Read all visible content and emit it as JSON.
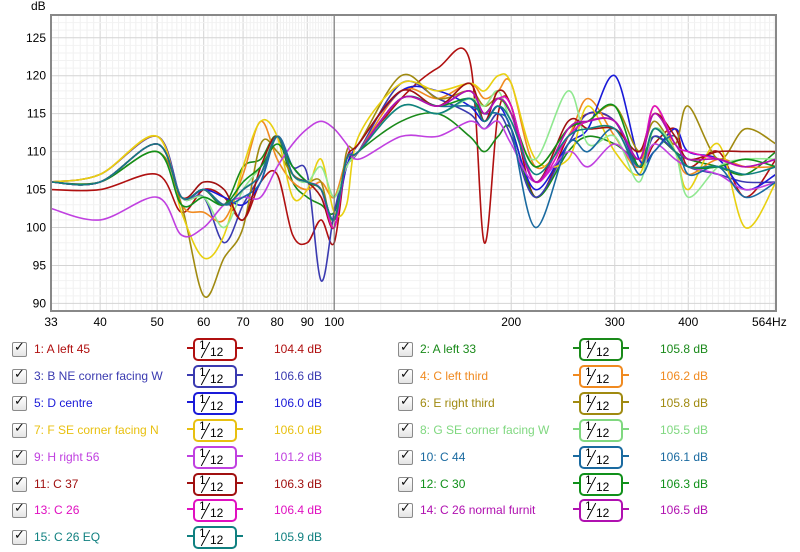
{
  "chart_data": {
    "type": "line",
    "title": "",
    "ylabel": "dB",
    "xlabel": "",
    "xscale": "log",
    "xlim": [
      33,
      564
    ],
    "ylim": [
      89,
      128
    ],
    "x_ticks": [
      33,
      40,
      50,
      60,
      70,
      80,
      90,
      100,
      200,
      300,
      400,
      564
    ],
    "x_tick_labels": [
      "33",
      "40",
      "50",
      "60",
      "70",
      "80",
      "90",
      "100",
      "200",
      "300",
      "400",
      "564Hz"
    ],
    "y_ticks": [
      90,
      95,
      100,
      105,
      110,
      115,
      120,
      125
    ],
    "grid": true,
    "cursor_x": 100,
    "series": [
      {
        "name": "1: A left 45",
        "color": "#b01010",
        "x": [
          33,
          40,
          50,
          55,
          60,
          65,
          70,
          75,
          80,
          85,
          90,
          95,
          100,
          105,
          110,
          130,
          150,
          170,
          180,
          190,
          200,
          220,
          250,
          270,
          300,
          330,
          350,
          380,
          400,
          450,
          500,
          564
        ],
        "y": [
          105,
          105,
          107,
          102,
          105,
          104,
          101,
          106,
          107,
          99,
          98,
          101,
          98,
          109,
          110,
          117,
          121,
          122,
          98,
          115,
          116,
          104,
          112,
          115,
          114,
          108,
          111,
          113,
          108,
          110,
          104,
          109
        ]
      },
      {
        "name": "2: A left 33",
        "color": "#1a8a1a",
        "x": [
          33,
          40,
          50,
          55,
          60,
          65,
          70,
          75,
          80,
          85,
          90,
          95,
          100,
          105,
          110,
          130,
          150,
          170,
          180,
          190,
          200,
          220,
          250,
          270,
          300,
          330,
          350,
          380,
          400,
          450,
          500,
          564
        ],
        "y": [
          106,
          106,
          111,
          104,
          105,
          103,
          108,
          109,
          112,
          106,
          104,
          103,
          102,
          108,
          110,
          114,
          115,
          112,
          110,
          112,
          113,
          104,
          110,
          112,
          111,
          109,
          112,
          110,
          109,
          108,
          107,
          110
        ]
      },
      {
        "name": "3: B NE corner facing W",
        "color": "#3a3ab0",
        "x": [
          33,
          40,
          50,
          55,
          60,
          65,
          70,
          75,
          80,
          85,
          90,
          95,
          100,
          105,
          110,
          130,
          150,
          170,
          180,
          190,
          200,
          220,
          250,
          270,
          300,
          330,
          350,
          380,
          400,
          450,
          500,
          564
        ],
        "y": [
          106,
          107,
          112,
          104,
          104,
          98,
          103,
          107,
          112,
          108,
          107,
          93,
          102,
          108,
          110,
          119,
          117,
          115,
          113,
          115,
          112,
          104,
          111,
          115,
          114,
          108,
          112,
          110,
          108,
          107,
          106,
          106
        ]
      },
      {
        "name": "4: C left third",
        "color": "#f08a20",
        "x": [
          33,
          40,
          50,
          55,
          60,
          65,
          70,
          75,
          80,
          85,
          90,
          95,
          100,
          105,
          110,
          130,
          150,
          170,
          180,
          190,
          200,
          220,
          250,
          270,
          300,
          330,
          350,
          380,
          400,
          450,
          500,
          564
        ],
        "y": [
          106,
          107,
          112,
          103,
          102,
          101,
          107,
          114,
          109,
          106,
          105,
          106,
          104,
          109,
          110,
          118,
          117,
          119,
          117,
          118,
          119,
          108,
          112,
          117,
          112,
          108,
          116,
          110,
          107,
          109,
          108,
          108
        ]
      },
      {
        "name": "5: D centre",
        "color": "#1a1ad8",
        "x": [
          33,
          40,
          50,
          55,
          60,
          65,
          70,
          75,
          80,
          85,
          90,
          95,
          100,
          105,
          110,
          130,
          150,
          170,
          180,
          190,
          200,
          220,
          250,
          270,
          300,
          330,
          350,
          380,
          400,
          450,
          500,
          564
        ],
        "y": [
          106,
          106,
          111,
          104,
          105,
          104,
          103,
          106,
          112,
          107,
          106,
          105,
          101,
          108,
          111,
          118,
          118,
          116,
          114,
          116,
          113,
          105,
          111,
          113,
          120,
          109,
          110,
          113,
          110,
          109,
          105,
          107
        ]
      },
      {
        "name": "6: E right third",
        "color": "#a08a10",
        "x": [
          33,
          40,
          50,
          55,
          60,
          65,
          70,
          75,
          80,
          85,
          90,
          95,
          100,
          105,
          110,
          130,
          150,
          170,
          180,
          190,
          200,
          220,
          250,
          270,
          300,
          330,
          350,
          380,
          400,
          450,
          500,
          564
        ],
        "y": [
          106,
          106,
          110,
          103,
          91,
          96,
          100,
          111,
          110,
          107,
          106,
          106,
          100,
          110,
          111,
          120,
          117,
          118,
          116,
          117,
          115,
          108,
          113,
          114,
          116,
          110,
          114,
          111,
          116,
          109,
          113,
          111
        ]
      },
      {
        "name": "7: F SE corner facing N",
        "color": "#e8d010",
        "x": [
          33,
          40,
          50,
          55,
          60,
          65,
          70,
          75,
          80,
          85,
          90,
          95,
          100,
          105,
          110,
          130,
          150,
          170,
          180,
          190,
          200,
          220,
          250,
          270,
          300,
          330,
          350,
          380,
          400,
          450,
          500,
          564
        ],
        "y": [
          106,
          107,
          112,
          102,
          96,
          99,
          108,
          114,
          112,
          104,
          105,
          109,
          102,
          103,
          112,
          119,
          118,
          119,
          118,
          120,
          119,
          109,
          109,
          116,
          110,
          107,
          113,
          110,
          105,
          111,
          100,
          106
        ]
      },
      {
        "name": "8: G SE corner facing W",
        "color": "#90e890",
        "x": [
          33,
          40,
          50,
          55,
          60,
          65,
          70,
          75,
          80,
          85,
          90,
          95,
          100,
          105,
          110,
          130,
          150,
          170,
          180,
          190,
          200,
          220,
          250,
          270,
          300,
          330,
          350,
          380,
          400,
          450,
          500,
          564
        ],
        "y": [
          106,
          106,
          111,
          104,
          104,
          100,
          105,
          108,
          112,
          107,
          106,
          108,
          104,
          108,
          110,
          116,
          115,
          117,
          116,
          118,
          114,
          109,
          118,
          111,
          112,
          106,
          113,
          110,
          104,
          108,
          109,
          109
        ]
      },
      {
        "name": "9: H right 56",
        "color": "#c040e0",
        "x": [
          33,
          40,
          50,
          55,
          60,
          65,
          70,
          75,
          80,
          85,
          90,
          95,
          100,
          105,
          110,
          130,
          150,
          170,
          180,
          190,
          200,
          220,
          250,
          270,
          300,
          330,
          350,
          380,
          400,
          450,
          500,
          564
        ],
        "y": [
          102.5,
          101,
          104,
          99,
          100,
          103,
          104,
          104,
          108,
          111,
          113,
          114,
          113,
          111,
          109,
          112,
          112,
          114,
          113,
          114,
          111,
          106,
          110,
          108,
          111,
          108,
          111,
          109,
          108,
          107,
          105,
          106
        ]
      },
      {
        "name": "10: C 44",
        "color": "#1a6aa0",
        "x": [
          33,
          40,
          50,
          55,
          60,
          65,
          70,
          75,
          80,
          85,
          90,
          95,
          100,
          105,
          110,
          130,
          150,
          170,
          180,
          190,
          200,
          220,
          250,
          270,
          300,
          330,
          350,
          380,
          400,
          450,
          500,
          564
        ],
        "y": [
          106,
          106,
          111,
          104,
          105,
          103,
          104,
          106,
          112,
          108,
          106,
          105,
          101,
          109,
          110,
          117,
          116,
          116,
          115,
          115,
          113,
          100,
          111,
          110,
          113,
          107,
          110,
          112,
          107,
          108,
          104,
          106
        ]
      },
      {
        "name": "11: C 37",
        "color": "#a01010",
        "x": [
          33,
          40,
          50,
          55,
          60,
          65,
          70,
          75,
          80,
          85,
          90,
          95,
          100,
          105,
          110,
          130,
          150,
          170,
          180,
          190,
          200,
          220,
          250,
          270,
          300,
          330,
          350,
          380,
          400,
          450,
          500,
          564
        ],
        "y": [
          106,
          106,
          111,
          104,
          106,
          105,
          101,
          108,
          112,
          107,
          106,
          104,
          100,
          109,
          111,
          118,
          116,
          119,
          114,
          118,
          116,
          106,
          114,
          113,
          113,
          110,
          115,
          112,
          109,
          110,
          110,
          110
        ]
      },
      {
        "name": "12: C 30",
        "color": "#10901a",
        "x": [
          33,
          40,
          50,
          55,
          60,
          65,
          70,
          75,
          80,
          85,
          90,
          95,
          100,
          105,
          110,
          130,
          150,
          170,
          180,
          190,
          200,
          220,
          250,
          270,
          300,
          330,
          350,
          380,
          400,
          450,
          500,
          564
        ],
        "y": [
          106,
          106,
          110,
          103,
          104,
          103,
          106,
          108,
          111,
          108,
          106,
          105,
          101,
          109,
          110,
          117,
          116,
          117,
          115,
          117,
          115,
          108,
          113,
          114,
          116,
          108,
          113,
          110,
          108,
          108,
          109,
          108
        ]
      },
      {
        "name": "13: C 26",
        "color": "#e010c0",
        "x": [
          33,
          40,
          50,
          55,
          60,
          65,
          70,
          75,
          80,
          85,
          90,
          95,
          100,
          105,
          110,
          130,
          150,
          170,
          180,
          190,
          200,
          220,
          250,
          270,
          300,
          330,
          350,
          380,
          400,
          450,
          500,
          564
        ],
        "y": [
          106,
          106,
          111,
          104,
          105,
          103,
          105,
          107,
          112,
          107,
          106,
          105,
          100,
          109,
          110,
          117,
          116,
          118,
          115,
          117,
          116,
          106,
          112,
          114,
          114,
          109,
          116,
          111,
          110,
          109,
          108,
          109
        ]
      },
      {
        "name": "14: C 26 normal furnit",
        "color": "#b010b0",
        "x": [
          33,
          40,
          50,
          55,
          60,
          65,
          70,
          75,
          80,
          85,
          90,
          95,
          100,
          105,
          110,
          130,
          150,
          170,
          180,
          190,
          200,
          220,
          250,
          270,
          300,
          330,
          350,
          380,
          400,
          450,
          500,
          564
        ],
        "y": [
          106,
          106,
          111,
          104,
          105,
          103,
          105,
          107,
          112,
          107,
          106,
          105,
          101,
          109,
          110,
          117,
          116,
          118,
          115,
          117,
          115,
          106,
          113,
          114,
          114,
          109,
          115,
          111,
          109,
          109,
          108,
          109
        ]
      },
      {
        "name": "15: C 26 EQ",
        "color": "#108080",
        "x": [
          33,
          40,
          50,
          55,
          60,
          65,
          70,
          75,
          80,
          85,
          90,
          95,
          100,
          105,
          110,
          130,
          150,
          170,
          180,
          190,
          200,
          220,
          250,
          270,
          300,
          330,
          350,
          380,
          400,
          450,
          500,
          564
        ],
        "y": [
          106,
          106,
          111,
          104,
          105,
          103,
          105,
          107,
          112,
          107,
          106,
          105,
          101,
          109,
          110,
          116,
          115,
          117,
          114,
          116,
          114,
          107,
          112,
          113,
          113,
          108,
          113,
          110,
          108,
          108,
          107,
          108
        ]
      }
    ]
  },
  "legend": [
    {
      "label": "1: A left 45",
      "value": "104.4 dB",
      "color": "#b01010"
    },
    {
      "label": "2: A left 33",
      "value": "105.8 dB",
      "color": "#1a8a1a"
    },
    {
      "label": "3: B NE corner facing W",
      "value": "106.6 dB",
      "color": "#3a3ab0"
    },
    {
      "label": "4: C left third",
      "value": "106.2 dB",
      "color": "#f08a20"
    },
    {
      "label": "5: D centre",
      "value": "106.0 dB",
      "color": "#1a1ad8"
    },
    {
      "label": "6: E right third",
      "value": "105.8 dB",
      "color": "#a08a10"
    },
    {
      "label": "7: F SE corner facing N",
      "value": "106.0 dB",
      "color": "#e8c010"
    },
    {
      "label": "8: G SE corner facing W",
      "value": "105.5 dB",
      "color": "#80d880"
    },
    {
      "label": "9: H right 56",
      "value": "101.2 dB",
      "color": "#c040e0"
    },
    {
      "label": "10: C 44",
      "value": "106.1 dB",
      "color": "#1a6aa0"
    },
    {
      "label": "11: C 37",
      "value": "106.3 dB",
      "color": "#a01010"
    },
    {
      "label": "12: C 30",
      "value": "106.3 dB",
      "color": "#10901a"
    },
    {
      "label": "13: C 26",
      "value": "106.4 dB",
      "color": "#e010c0"
    },
    {
      "label": "14: C 26 normal furnit",
      "value": "106.5 dB",
      "color": "#b010b0"
    },
    {
      "label": "15: C 26 EQ",
      "value": "105.9 dB",
      "color": "#108080"
    }
  ],
  "smoothing": {
    "numerator": "1",
    "denominator": "12"
  },
  "checked_mark": "✓"
}
